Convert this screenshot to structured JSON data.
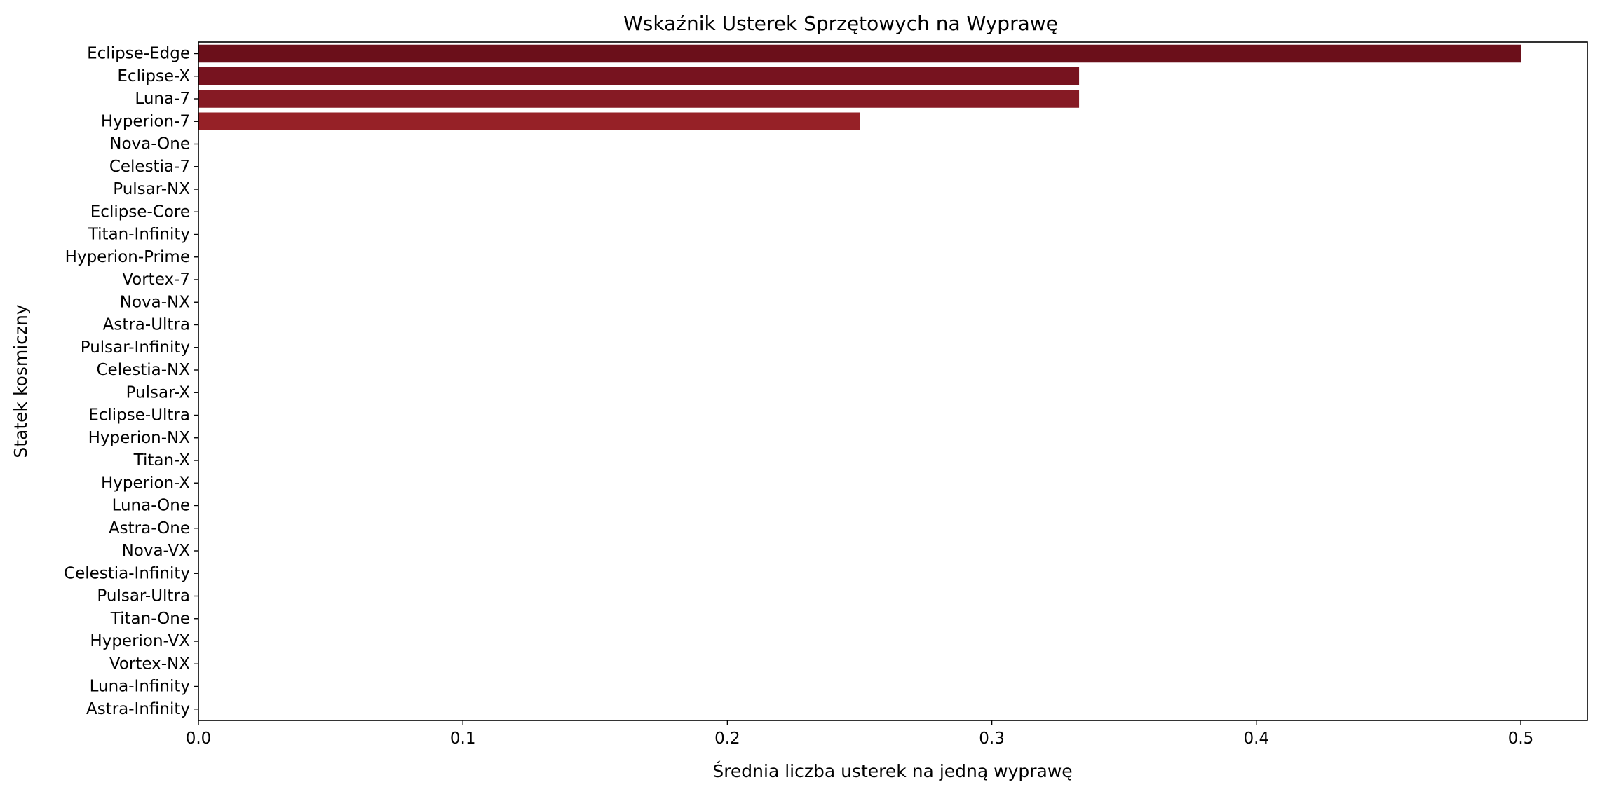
{
  "chart_data": {
    "type": "bar",
    "orientation": "horizontal",
    "title": "Wskaźnik Usterek Sprzętowych na Wyprawę",
    "xlabel": "Średnia liczba usterek na jedną wyprawę",
    "ylabel": "Statek kosmiczny",
    "xlim": [
      0,
      0.525
    ],
    "xticks": [
      0.0,
      0.1,
      0.2,
      0.3,
      0.4,
      0.5
    ],
    "xtick_labels": [
      "0.0",
      "0.1",
      "0.2",
      "0.3",
      "0.4",
      "0.5"
    ],
    "grid": false,
    "categories": [
      "Eclipse-Edge",
      "Eclipse-X",
      "Luna-7",
      "Hyperion-7",
      "Nova-One",
      "Celestia-7",
      "Pulsar-NX",
      "Eclipse-Core",
      "Titan-Infinity",
      "Hyperion-Prime",
      "Vortex-7",
      "Nova-NX",
      "Astra-Ultra",
      "Pulsar-Infinity",
      "Celestia-NX",
      "Pulsar-X",
      "Eclipse-Ultra",
      "Hyperion-NX",
      "Titan-X",
      "Hyperion-X",
      "Luna-One",
      "Astra-One",
      "Nova-VX",
      "Celestia-Infinity",
      "Pulsar-Ultra",
      "Titan-One",
      "Hyperion-VX",
      "Vortex-NX",
      "Luna-Infinity",
      "Astra-Infinity"
    ],
    "values": [
      0.5,
      0.333,
      0.333,
      0.25,
      0,
      0,
      0,
      0,
      0,
      0,
      0,
      0,
      0,
      0,
      0,
      0,
      0,
      0,
      0,
      0,
      0,
      0,
      0,
      0,
      0,
      0,
      0,
      0,
      0,
      0
    ],
    "colors": [
      "#6b0f1a",
      "#77131f",
      "#861a24",
      "#962127"
    ]
  }
}
